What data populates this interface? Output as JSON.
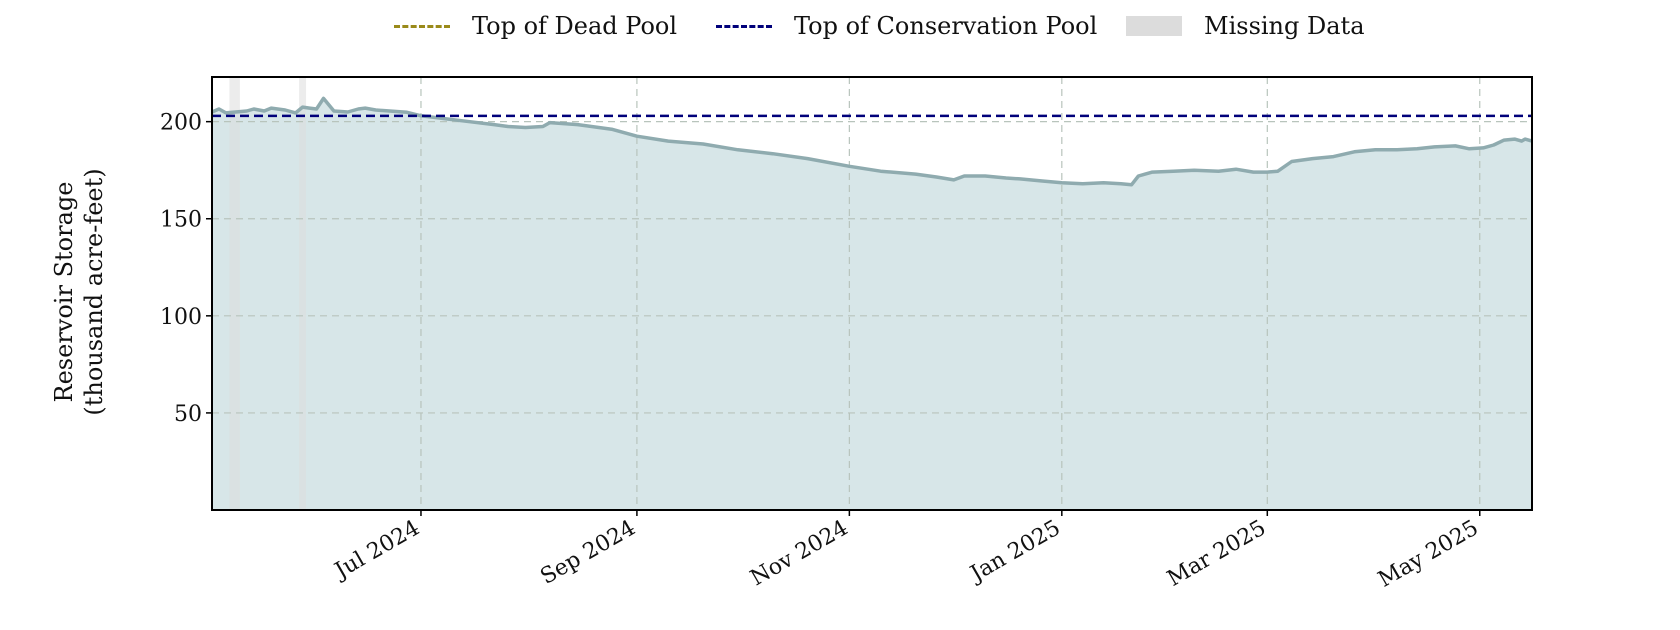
{
  "legend": {
    "dead_pool": {
      "label": "Top of Dead Pool",
      "color": "#9a8a1a"
    },
    "conservation_pool": {
      "label": "Top of Conservation Pool",
      "color": "#00007a"
    },
    "missing": {
      "label": "Missing Data",
      "color": "#dcdcdc"
    }
  },
  "axis": {
    "ylabel_line1": "Reservoir Storage",
    "ylabel_line2": "(thousand acre-feet)"
  },
  "chart_data": {
    "type": "area",
    "x_axis": "date",
    "xlim": [
      "2024-05-02",
      "2025-05-16"
    ],
    "ylim": [
      0,
      223
    ],
    "y_ticks": [
      50,
      100,
      150,
      200
    ],
    "x_ticks": [
      {
        "date": "2024-07-01",
        "label": "Jul 2024"
      },
      {
        "date": "2024-09-01",
        "label": "Sep 2024"
      },
      {
        "date": "2024-11-01",
        "label": "Nov 2024"
      },
      {
        "date": "2025-01-01",
        "label": "Jan 2025"
      },
      {
        "date": "2025-03-01",
        "label": "Mar 2025"
      },
      {
        "date": "2025-05-01",
        "label": "May 2025"
      }
    ],
    "grid": true,
    "legend_position": "top-center",
    "series": [
      {
        "type": "line",
        "color": "#8fabaf",
        "fill": "#d7e6e8",
        "points": [
          [
            "2024-05-02",
            205.0
          ],
          [
            "2024-05-04",
            206.5
          ],
          [
            "2024-05-06",
            204.5
          ],
          [
            "2024-05-12",
            205.5
          ],
          [
            "2024-05-14",
            206.5
          ],
          [
            "2024-05-17",
            205.5
          ],
          [
            "2024-05-19",
            207.0
          ],
          [
            "2024-05-23",
            206.0
          ],
          [
            "2024-05-26",
            204.5
          ],
          [
            "2024-05-28",
            207.5
          ],
          [
            "2024-05-30",
            207.0
          ],
          [
            "2024-06-01",
            206.5
          ],
          [
            "2024-06-03",
            212.0
          ],
          [
            "2024-06-06",
            205.5
          ],
          [
            "2024-06-10",
            205.0
          ],
          [
            "2024-06-13",
            206.5
          ],
          [
            "2024-06-15",
            207.0
          ],
          [
            "2024-06-18",
            206.0
          ],
          [
            "2024-06-22",
            205.5
          ],
          [
            "2024-06-27",
            204.8
          ],
          [
            "2024-07-01",
            203.0
          ],
          [
            "2024-07-08",
            201.5
          ],
          [
            "2024-07-15",
            200.0
          ],
          [
            "2024-07-22",
            198.5
          ],
          [
            "2024-07-26",
            197.5
          ],
          [
            "2024-07-31",
            197.0
          ],
          [
            "2024-08-05",
            197.5
          ],
          [
            "2024-08-07",
            199.5
          ],
          [
            "2024-08-15",
            198.5
          ],
          [
            "2024-08-25",
            196.0
          ],
          [
            "2024-09-01",
            192.5
          ],
          [
            "2024-09-10",
            190.0
          ],
          [
            "2024-09-20",
            188.5
          ],
          [
            "2024-09-30",
            185.5
          ],
          [
            "2024-10-10",
            183.5
          ],
          [
            "2024-10-20",
            181.0
          ],
          [
            "2024-11-01",
            177.0
          ],
          [
            "2024-11-10",
            174.5
          ],
          [
            "2024-11-20",
            173.0
          ],
          [
            "2024-11-26",
            171.5
          ],
          [
            "2024-12-01",
            170.0
          ],
          [
            "2024-12-04",
            172.0
          ],
          [
            "2024-12-10",
            172.0
          ],
          [
            "2024-12-16",
            171.0
          ],
          [
            "2024-12-20",
            170.5
          ],
          [
            "2024-12-26",
            169.5
          ],
          [
            "2025-01-01",
            168.5
          ],
          [
            "2025-01-07",
            168.0
          ],
          [
            "2025-01-13",
            168.5
          ],
          [
            "2025-01-18",
            168.0
          ],
          [
            "2025-01-21",
            167.5
          ],
          [
            "2025-01-23",
            172.0
          ],
          [
            "2025-01-27",
            174.0
          ],
          [
            "2025-02-02",
            174.5
          ],
          [
            "2025-02-08",
            175.0
          ],
          [
            "2025-02-15",
            174.5
          ],
          [
            "2025-02-20",
            175.5
          ],
          [
            "2025-02-25",
            174.0
          ],
          [
            "2025-03-01",
            174.0
          ],
          [
            "2025-03-04",
            174.5
          ],
          [
            "2025-03-08",
            179.5
          ],
          [
            "2025-03-14",
            181.0
          ],
          [
            "2025-03-20",
            182.0
          ],
          [
            "2025-03-26",
            184.5
          ],
          [
            "2025-04-01",
            185.5
          ],
          [
            "2025-04-07",
            185.5
          ],
          [
            "2025-04-13",
            186.0
          ],
          [
            "2025-04-18",
            187.0
          ],
          [
            "2025-04-24",
            187.5
          ],
          [
            "2025-04-28",
            186.0
          ],
          [
            "2025-05-02",
            186.5
          ],
          [
            "2025-05-05",
            188.0
          ],
          [
            "2025-05-08",
            190.5
          ],
          [
            "2025-05-11",
            191.0
          ],
          [
            "2025-05-13",
            190.0
          ],
          [
            "2025-05-14",
            191.0
          ],
          [
            "2025-05-15",
            190.5
          ],
          [
            "2025-05-16",
            190.0
          ]
        ]
      }
    ],
    "reference_lines": [
      {
        "legend": "conservation_pool",
        "y": 203.0,
        "style": "dashed"
      }
    ],
    "missing_ranges": [
      [
        "2024-05-07",
        "2024-05-10"
      ],
      [
        "2024-05-27",
        "2024-05-29"
      ]
    ]
  }
}
